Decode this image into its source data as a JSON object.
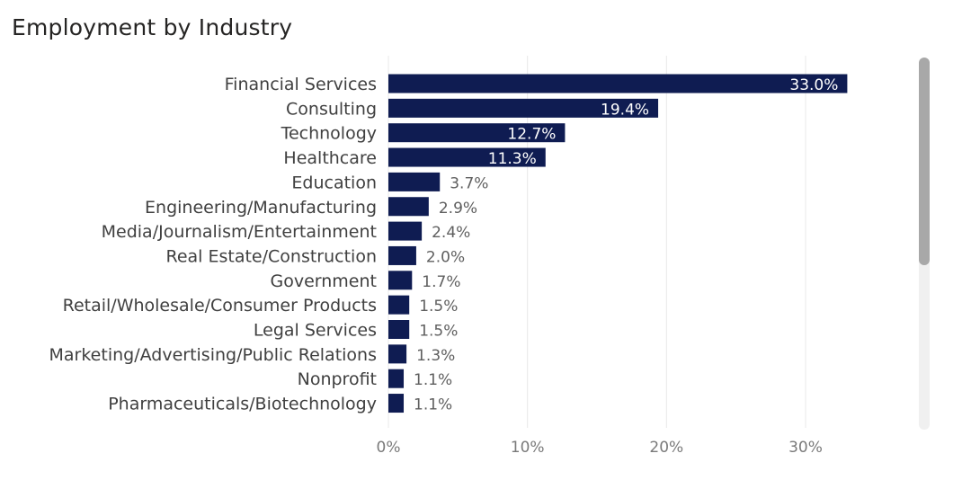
{
  "title": "Employment by Industry",
  "chart_data": {
    "type": "bar",
    "orientation": "horizontal",
    "title": "Employment by Industry",
    "categories": [
      "Financial Services",
      "Consulting",
      "Technology",
      "Healthcare",
      "Education",
      "Engineering/Manufacturing",
      "Media/Journalism/Entertainment",
      "Real Estate/Construction",
      "Government",
      "Retail/Wholesale/Consumer Products",
      "Legal Services",
      "Marketing/Advertising/Public Relations",
      "Nonprofit",
      "Pharmaceuticals/Biotechnology"
    ],
    "values": [
      33.0,
      19.4,
      12.7,
      11.3,
      3.7,
      2.9,
      2.4,
      2.0,
      1.7,
      1.5,
      1.5,
      1.3,
      1.1,
      1.1
    ],
    "data_labels": [
      "33.0%",
      "19.4%",
      "12.7%",
      "11.3%",
      "3.7%",
      "2.9%",
      "2.4%",
      "2.0%",
      "1.7%",
      "1.5%",
      "1.5%",
      "1.3%",
      "1.1%",
      "1.1%"
    ],
    "x_ticks": [
      0,
      10,
      20,
      30
    ],
    "x_tick_labels": [
      "0%",
      "10%",
      "20%",
      "30%"
    ],
    "xlim": [
      0,
      38
    ],
    "grid": true,
    "bar_color": "#0f1c52"
  },
  "colors": {
    "bar": "#0f1c52",
    "label_inside": "#ffffff",
    "label_outside": "#5f5f5f",
    "category_text": "#404040",
    "tick_text": "#7a7a7a",
    "grid": "#e8e8e8"
  }
}
